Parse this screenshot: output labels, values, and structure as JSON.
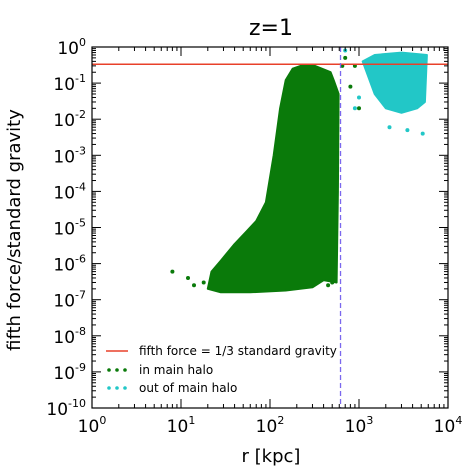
{
  "chart_data": {
    "type": "scatter",
    "title": "z=1",
    "xlabel": "r [kpc]",
    "ylabel": "fifth force/standard gravity",
    "x_scale": "log",
    "y_scale": "log",
    "xlim": [
      1,
      10000
    ],
    "ylim": [
      1e-10,
      1
    ],
    "x_tick_labels": [
      {
        "base": "10",
        "exp": "0"
      },
      {
        "base": "10",
        "exp": "1"
      },
      {
        "base": "10",
        "exp": "2"
      },
      {
        "base": "10",
        "exp": "3"
      },
      {
        "base": "10",
        "exp": "4"
      }
    ],
    "y_tick_labels": [
      {
        "base": "10",
        "exp": "-10"
      },
      {
        "base": "10",
        "exp": "-9"
      },
      {
        "base": "10",
        "exp": "-8"
      },
      {
        "base": "10",
        "exp": "-7"
      },
      {
        "base": "10",
        "exp": "-6"
      },
      {
        "base": "10",
        "exp": "-5"
      },
      {
        "base": "10",
        "exp": "-4"
      },
      {
        "base": "10",
        "exp": "-3"
      },
      {
        "base": "10",
        "exp": "-2"
      },
      {
        "base": "10",
        "exp": "-1"
      },
      {
        "base": "10",
        "exp": "0"
      }
    ],
    "grid": false,
    "legend_position": "lower-left",
    "hline": {
      "name": "fifth force = 1/3 standard gravity",
      "y": 0.3333,
      "color": "#e8402a"
    },
    "vline": {
      "x": 620,
      "color": "#7b68ee",
      "style": "dashed"
    },
    "series": [
      {
        "name": "in main halo",
        "color": "#0a7a0a",
        "region_polygon": [
          [
            20,
            2e-07
          ],
          [
            28,
            1.6e-07
          ],
          [
            60,
            1.6e-07
          ],
          [
            150,
            1.8e-07
          ],
          [
            300,
            2.2e-07
          ],
          [
            400,
            3.5e-07
          ],
          [
            560,
            3e-07
          ],
          [
            580,
            0.0001
          ],
          [
            590,
            0.05
          ],
          [
            520,
            0.12
          ],
          [
            480,
            0.2
          ],
          [
            300,
            0.32
          ],
          [
            220,
            0.3
          ],
          [
            180,
            0.25
          ],
          [
            150,
            0.12
          ],
          [
            130,
            0.02
          ],
          [
            110,
            0.001
          ],
          [
            90,
            5e-05
          ],
          [
            70,
            1.5e-05
          ],
          [
            55,
            8e-06
          ],
          [
            40,
            3.5e-06
          ],
          [
            28,
            1.2e-06
          ],
          [
            22,
            6e-07
          ]
        ],
        "sample_points": [
          [
            8,
            6e-07
          ],
          [
            12,
            4e-07
          ],
          [
            14,
            2.5e-07
          ],
          [
            18,
            3e-07
          ],
          [
            450,
            2.5e-07
          ],
          [
            500,
            3e-07
          ],
          [
            650,
            0.3
          ],
          [
            700,
            0.5
          ],
          [
            800,
            0.08
          ],
          [
            900,
            0.3
          ],
          [
            1000,
            0.02
          ]
        ]
      },
      {
        "name": "out of main halo",
        "color": "#22c7c7",
        "region_polygon": [
          [
            1100,
            0.4
          ],
          [
            1500,
            0.05
          ],
          [
            2000,
            0.02
          ],
          [
            3000,
            0.015
          ],
          [
            4500,
            0.02
          ],
          [
            5500,
            0.03
          ],
          [
            5800,
            0.6
          ],
          [
            3000,
            0.7
          ],
          [
            1500,
            0.6
          ]
        ],
        "sample_points": [
          [
            900,
            0.02
          ],
          [
            1000,
            0.04
          ],
          [
            2200,
            0.006
          ],
          [
            3500,
            0.005
          ],
          [
            5200,
            0.004
          ],
          [
            700,
            0.8
          ]
        ]
      }
    ]
  }
}
